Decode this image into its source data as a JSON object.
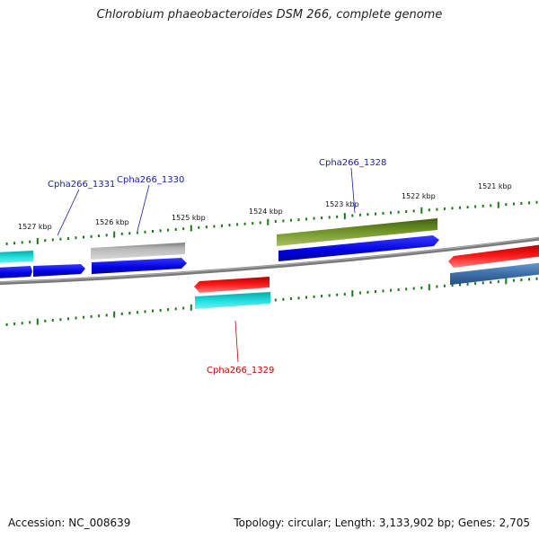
{
  "title": "Chlorobium phaeobacteroides DSM 266, complete genome",
  "footer": {
    "accession": "Accession: NC_008639",
    "topology": "Topology: circular; Length: 3,133,902 bp; Genes: 2,705"
  },
  "kbp_labels": [
    "1527 kbp",
    "1526 kbp",
    "1525 kbp",
    "1524 kbp",
    "1523 kbp",
    "1522 kbp",
    "1521 kbp"
  ],
  "gene_labels": {
    "g1331": "Cpha266_1331",
    "g1330": "Cpha266_1330",
    "g1328": "Cpha266_1328",
    "g1329": "Cpha266_1329"
  },
  "colors": {
    "forward_label": "#1a1aaa",
    "reverse_label": "#cc0000",
    "blue": "#0a0ae6",
    "cyan": "#13c6c6",
    "gray": "#b4b4b4",
    "olive": "#6b8e23",
    "red": "#f01010",
    "steel": "#4a7ab0",
    "ticks": "#1a7a1a",
    "backbone": "#7a7a7a"
  }
}
